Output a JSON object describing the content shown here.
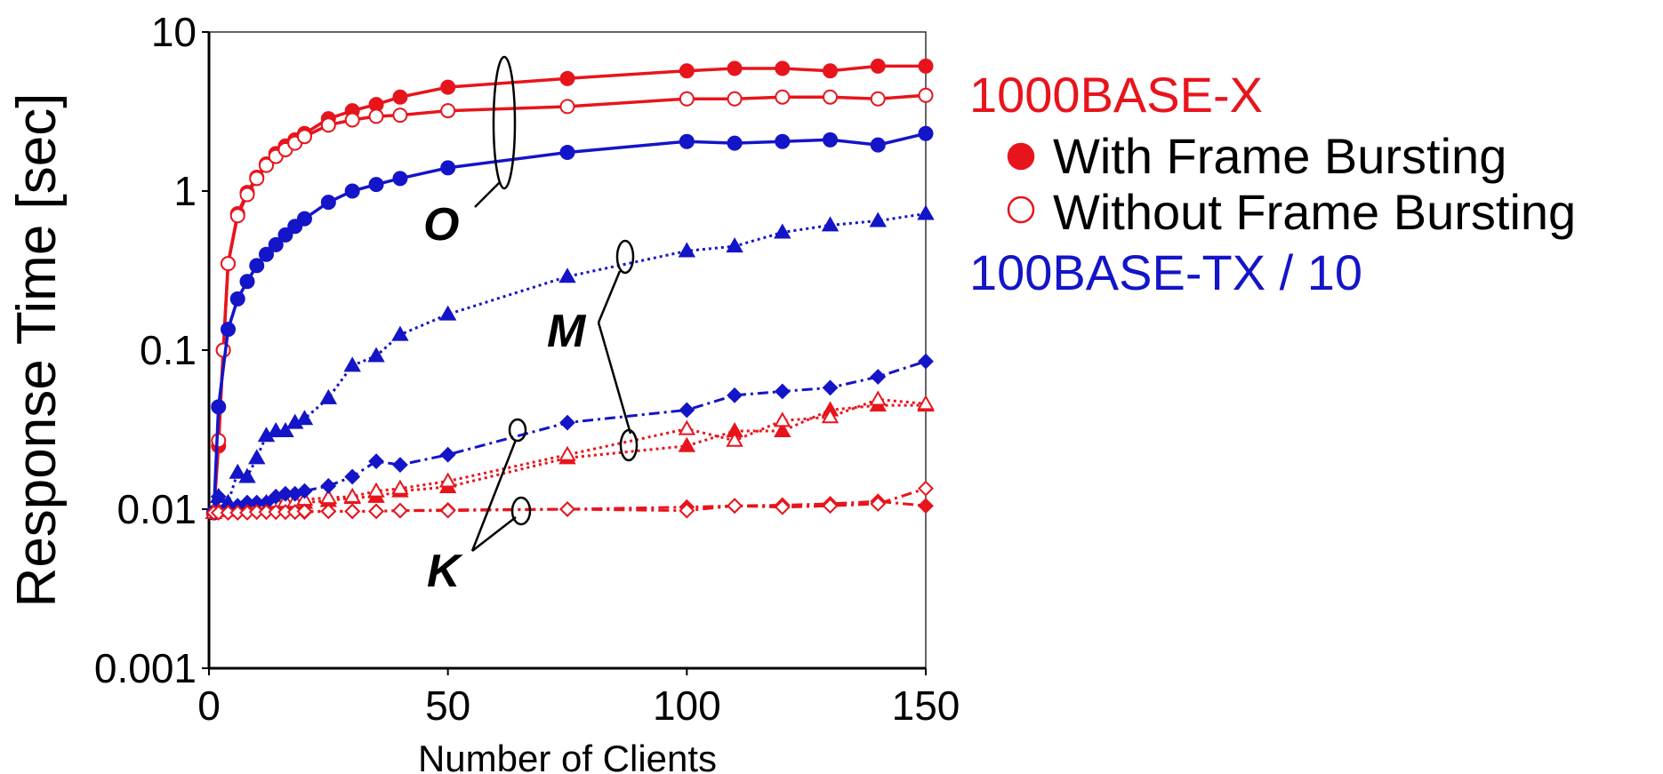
{
  "chart_data": {
    "type": "line",
    "xlabel": "Number of Clients",
    "ylabel": "Response Time [sec]",
    "xlim": [
      0,
      150
    ],
    "ylim": [
      0.001,
      10
    ],
    "yscale": "log",
    "grid": false,
    "x_ticks": [
      "0",
      "50",
      "100",
      "150"
    ],
    "y_ticks": [
      "0.001",
      "0.01",
      "0.1",
      "1",
      "10"
    ],
    "legend": {
      "placement": "right",
      "group1": "1000BASE-X",
      "filled": "With Frame Bursting",
      "hollow": "Without Frame Bursting",
      "group2": "100BASE-TX / 10"
    },
    "annotations": [
      "O",
      "M",
      "K"
    ],
    "colors": {
      "red": "#e8141c",
      "blue": "#1414c8"
    },
    "series": [
      {
        "group": "O",
        "color": "red",
        "marker": "circle",
        "filled": true,
        "line": "solid",
        "x": [
          1,
          2,
          3,
          4,
          6,
          8,
          10,
          12,
          14,
          16,
          18,
          20,
          25,
          30,
          35,
          40,
          50,
          75,
          100,
          110,
          120,
          130,
          140,
          150
        ],
        "y": [
          0.0095,
          0.025,
          0.1,
          0.35,
          0.72,
          0.98,
          1.22,
          1.48,
          1.72,
          1.92,
          2.1,
          2.3,
          2.85,
          3.2,
          3.5,
          3.9,
          4.5,
          5.1,
          5.7,
          5.9,
          5.9,
          5.7,
          6.1,
          6.1
        ]
      },
      {
        "group": "O",
        "color": "red",
        "marker": "circle",
        "filled": false,
        "line": "solid",
        "x": [
          1,
          2,
          3,
          4,
          6,
          8,
          10,
          12,
          14,
          16,
          18,
          20,
          25,
          30,
          35,
          40,
          50,
          75,
          100,
          110,
          120,
          130,
          140,
          150
        ],
        "y": [
          0.0095,
          0.027,
          0.1,
          0.35,
          0.7,
          0.95,
          1.2,
          1.45,
          1.65,
          1.82,
          2.0,
          2.2,
          2.6,
          2.8,
          2.95,
          3.0,
          3.2,
          3.4,
          3.8,
          3.8,
          3.9,
          3.9,
          3.8,
          4.0
        ]
      },
      {
        "group": "O",
        "color": "blue",
        "marker": "circle",
        "filled": true,
        "line": "solid",
        "x": [
          1,
          2,
          4,
          6,
          8,
          10,
          12,
          14,
          16,
          18,
          20,
          25,
          30,
          35,
          40,
          50,
          75,
          100,
          110,
          120,
          130,
          140,
          150
        ],
        "y": [
          0.0095,
          0.044,
          0.135,
          0.21,
          0.27,
          0.34,
          0.4,
          0.46,
          0.53,
          0.6,
          0.67,
          0.85,
          1.0,
          1.1,
          1.2,
          1.4,
          1.75,
          2.05,
          2.0,
          2.05,
          2.1,
          1.95,
          2.3
        ]
      },
      {
        "group": "M",
        "color": "blue",
        "marker": "triangle",
        "filled": true,
        "line": "dotted",
        "x": [
          1,
          2,
          4,
          6,
          8,
          10,
          12,
          14,
          16,
          18,
          20,
          25,
          30,
          35,
          40,
          50,
          75,
          100,
          110,
          120,
          130,
          140,
          150
        ],
        "y": [
          0.0095,
          0.012,
          0.011,
          0.017,
          0.016,
          0.021,
          0.029,
          0.031,
          0.031,
          0.035,
          0.037,
          0.05,
          0.08,
          0.092,
          0.125,
          0.168,
          0.29,
          0.42,
          0.45,
          0.55,
          0.61,
          0.65,
          0.72
        ]
      },
      {
        "group": "M",
        "color": "red",
        "marker": "triangle",
        "filled": true,
        "line": "dotted",
        "x": [
          1,
          2,
          4,
          6,
          8,
          10,
          12,
          14,
          16,
          18,
          20,
          25,
          30,
          35,
          40,
          50,
          75,
          100,
          110,
          120,
          130,
          140,
          150
        ],
        "y": [
          0.0095,
          0.0098,
          0.0098,
          0.0099,
          0.01,
          0.01,
          0.0103,
          0.0105,
          0.0107,
          0.011,
          0.011,
          0.0113,
          0.0118,
          0.012,
          0.013,
          0.0138,
          0.021,
          0.025,
          0.031,
          0.031,
          0.042,
          0.045,
          0.045
        ]
      },
      {
        "group": "M",
        "color": "red",
        "marker": "triangle",
        "filled": false,
        "line": "dotted",
        "x": [
          1,
          2,
          4,
          6,
          8,
          10,
          12,
          14,
          16,
          18,
          20,
          25,
          30,
          35,
          40,
          50,
          75,
          100,
          110,
          120,
          130,
          140,
          150
        ],
        "y": [
          0.0095,
          0.0098,
          0.0099,
          0.01,
          0.0102,
          0.0105,
          0.011,
          0.0112,
          0.0112,
          0.0112,
          0.0115,
          0.0118,
          0.012,
          0.013,
          0.0135,
          0.015,
          0.022,
          0.032,
          0.027,
          0.036,
          0.038,
          0.049,
          0.046
        ]
      },
      {
        "group": "K",
        "color": "blue",
        "marker": "diamond",
        "filled": true,
        "line": "dashdot",
        "x": [
          1,
          2,
          4,
          6,
          8,
          10,
          12,
          14,
          16,
          18,
          20,
          25,
          30,
          35,
          40,
          50,
          75,
          100,
          110,
          120,
          130,
          140,
          150
        ],
        "y": [
          0.0095,
          0.012,
          0.0105,
          0.0105,
          0.011,
          0.011,
          0.011,
          0.012,
          0.0125,
          0.0125,
          0.013,
          0.014,
          0.016,
          0.02,
          0.019,
          0.022,
          0.035,
          0.042,
          0.052,
          0.055,
          0.058,
          0.068,
          0.085
        ]
      },
      {
        "group": "K",
        "color": "red",
        "marker": "diamond",
        "filled": true,
        "line": "dashdot",
        "x": [
          1,
          2,
          4,
          6,
          8,
          10,
          12,
          14,
          16,
          18,
          20,
          25,
          30,
          35,
          40,
          50,
          75,
          100,
          110,
          120,
          130,
          140,
          150
        ],
        "y": [
          0.0095,
          0.0095,
          0.0095,
          0.0095,
          0.0096,
          0.0096,
          0.0096,
          0.0096,
          0.0096,
          0.0096,
          0.0096,
          0.0097,
          0.0097,
          0.0097,
          0.0098,
          0.0099,
          0.01,
          0.0103,
          0.0105,
          0.0106,
          0.0108,
          0.0112,
          0.0105
        ]
      },
      {
        "group": "K",
        "color": "red",
        "marker": "diamond",
        "filled": false,
        "line": "dashdot",
        "x": [
          1,
          2,
          4,
          6,
          8,
          10,
          12,
          14,
          16,
          18,
          20,
          25,
          30,
          35,
          40,
          50,
          75,
          100,
          110,
          120,
          130,
          140,
          150
        ],
        "y": [
          0.0095,
          0.0095,
          0.0095,
          0.0095,
          0.0095,
          0.0096,
          0.0096,
          0.0096,
          0.0096,
          0.0096,
          0.0097,
          0.0097,
          0.0097,
          0.0097,
          0.0098,
          0.0098,
          0.01,
          0.0098,
          0.0105,
          0.0103,
          0.0105,
          0.0108,
          0.0135
        ]
      }
    ]
  }
}
